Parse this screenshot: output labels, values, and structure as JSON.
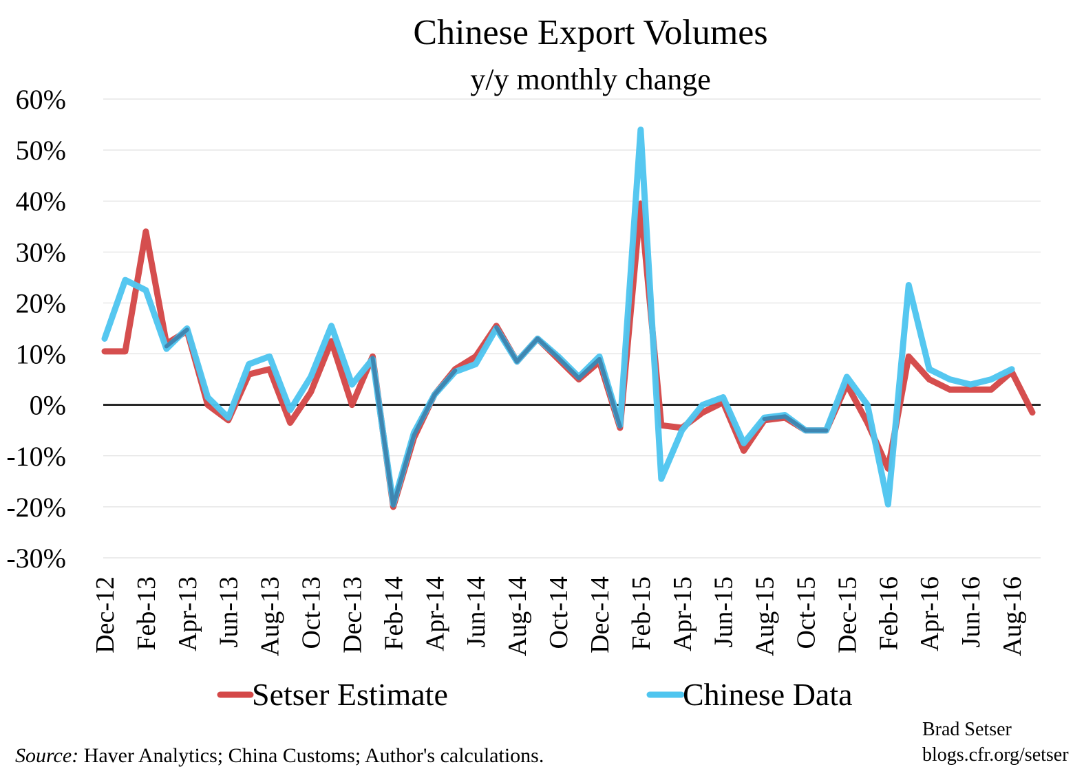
{
  "chart_data": {
    "type": "line",
    "title": "Chinese Export Volumes",
    "subtitle": "y/y monthly change",
    "ylim": [
      -30,
      60
    ],
    "yticks": [
      60,
      50,
      40,
      30,
      20,
      10,
      0,
      -10,
      -20,
      -30
    ],
    "ytick_labels": [
      "60%",
      "50%",
      "40%",
      "30%",
      "20%",
      "10%",
      "0%",
      "-10%",
      "-20%",
      "-30%"
    ],
    "grid": true,
    "legend_position": "bottom",
    "x": [
      "Dec-12",
      "Jan-13",
      "Feb-13",
      "Mar-13",
      "Apr-13",
      "May-13",
      "Jun-13",
      "Jul-13",
      "Aug-13",
      "Sep-13",
      "Oct-13",
      "Nov-13",
      "Dec-13",
      "Jan-14",
      "Feb-14",
      "Mar-14",
      "Apr-14",
      "May-14",
      "Jun-14",
      "Jul-14",
      "Aug-14",
      "Sep-14",
      "Oct-14",
      "Nov-14",
      "Dec-14",
      "Jan-15",
      "Feb-15",
      "Mar-15",
      "Apr-15",
      "May-15",
      "Jun-15",
      "Jul-15",
      "Aug-15",
      "Sep-15",
      "Oct-15",
      "Nov-15",
      "Dec-15",
      "Jan-16",
      "Feb-16",
      "Mar-16",
      "Apr-16",
      "May-16",
      "Jun-16",
      "Jul-16",
      "Aug-16",
      "Sep-16"
    ],
    "xtick_labels": [
      "Dec-12",
      "Feb-13",
      "Apr-13",
      "Jun-13",
      "Aug-13",
      "Oct-13",
      "Dec-13",
      "Feb-14",
      "Apr-14",
      "Jun-14",
      "Aug-14",
      "Oct-14",
      "Dec-14",
      "Feb-15",
      "Apr-15",
      "Jun-15",
      "Aug-15",
      "Oct-15",
      "Dec-15",
      "Feb-16",
      "Apr-16",
      "Jun-16",
      "Aug-16"
    ],
    "series": [
      {
        "name": "Chinese Data",
        "color": "#4FC5EF",
        "values": [
          13,
          24.5,
          22.5,
          11,
          15,
          1.5,
          -2.5,
          8,
          9.5,
          -1,
          5.5,
          15.5,
          4,
          9,
          -19.5,
          -5.5,
          2,
          6.5,
          8,
          15,
          8.5,
          13,
          9.5,
          5.5,
          9.5,
          -4,
          54,
          -14.5,
          -5,
          0,
          1.5,
          -7.5,
          -2.5,
          -2,
          -5,
          -5,
          5.5,
          0,
          -19.5,
          23.5,
          7,
          5,
          4,
          5,
          7,
          null
        ]
      },
      {
        "name": "Setser Estimate",
        "color": "#D44848",
        "values": [
          10.5,
          10.5,
          34,
          12,
          14.5,
          0,
          -3,
          6,
          7,
          -3.5,
          2.5,
          12.5,
          0,
          9.5,
          -20,
          -6.5,
          2,
          7,
          9.5,
          15.5,
          8.5,
          13,
          9,
          5,
          8.5,
          -4.5,
          39.5,
          -4,
          -4.5,
          -1.5,
          0.5,
          -9,
          -3,
          -2.5,
          -5,
          -5,
          4,
          -3.5,
          -12.5,
          9.5,
          5,
          3,
          3,
          3,
          6.5,
          -1.5
        ]
      }
    ],
    "series_draw_order": [
      "Setser Estimate",
      "Chinese Data"
    ],
    "overlap_color": "#3F86B1"
  },
  "legend": {
    "items": [
      {
        "label": "Setser Estimate",
        "color": "#D44848"
      },
      {
        "label": "Chinese Data",
        "color": "#4FC5EF"
      }
    ]
  },
  "footer": {
    "source_label": "Source:",
    "source_text": " Haver Analytics; China Customs; Author's calculations.",
    "credit_name": "Brad Setser",
    "credit_url": "blogs.cfr.org/setser"
  }
}
